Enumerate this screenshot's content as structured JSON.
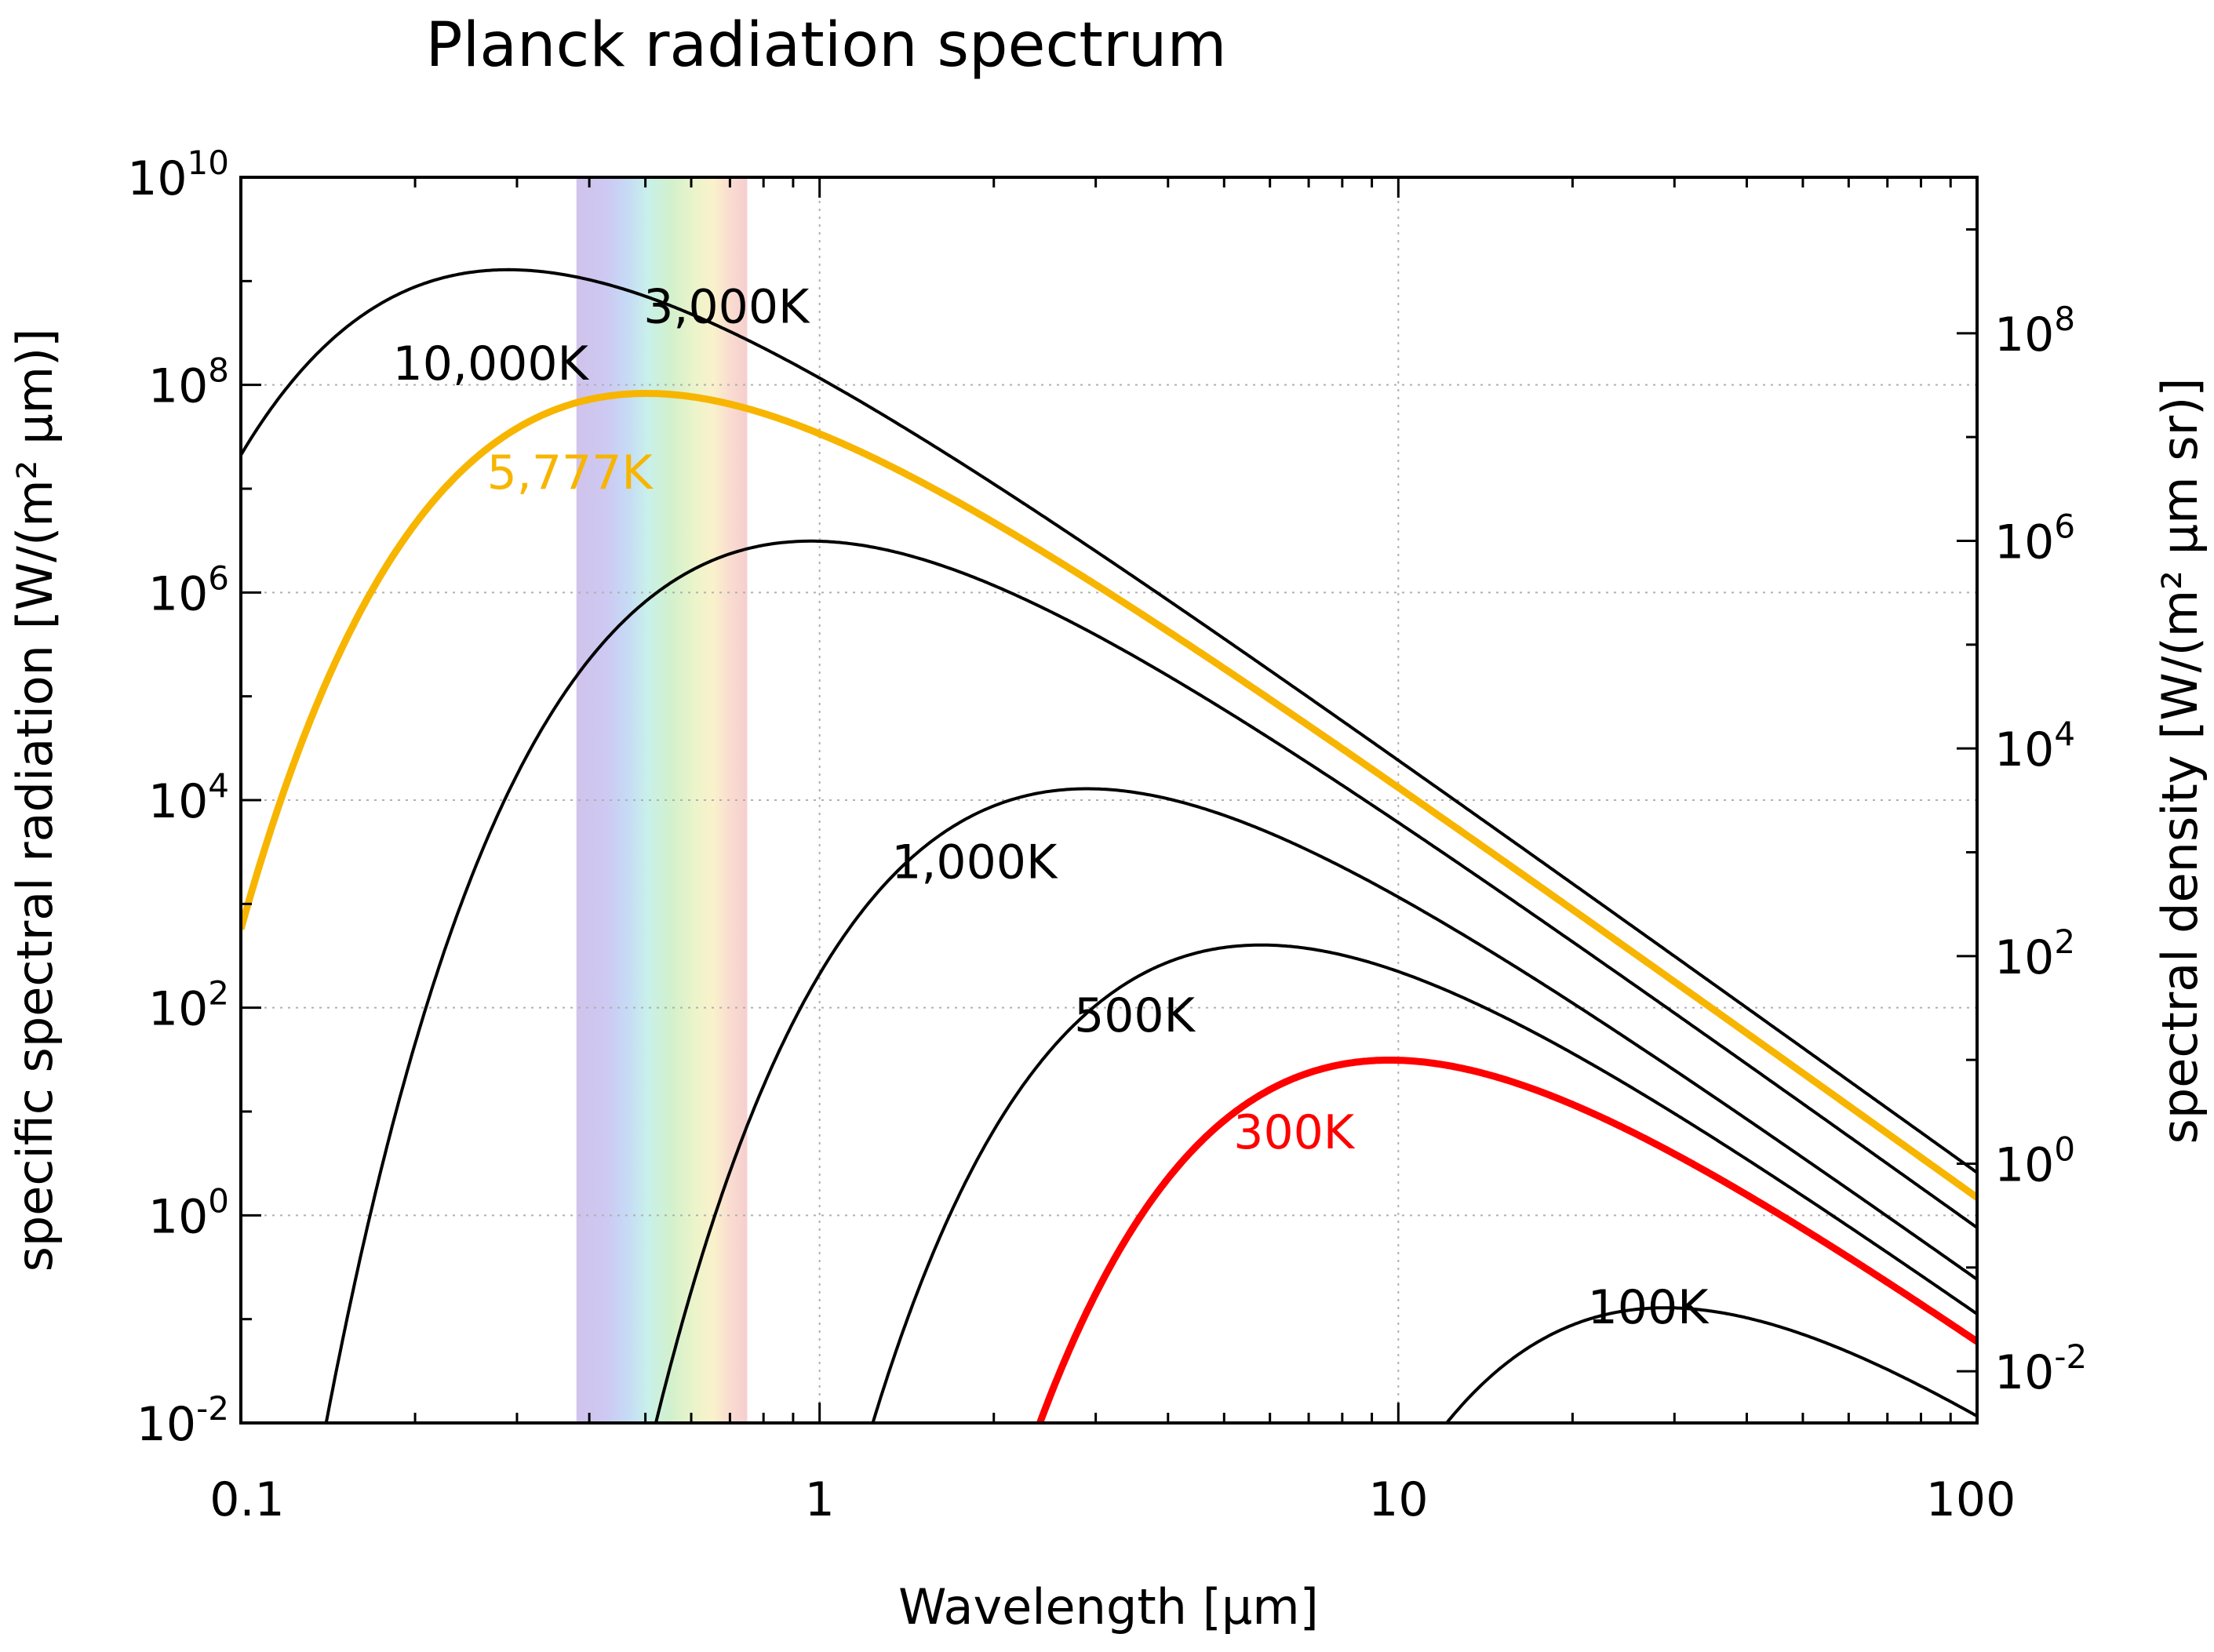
{
  "chart_data": {
    "type": "line",
    "title": "Planck radiation spectrum",
    "xlabel": "Wavelength [µm]",
    "ylabel": "specific spectral radiation [W/(m² µm)]",
    "y2label": "spectral density [W/(m² µm sr)]",
    "xscale": "log",
    "yscale": "log",
    "xlim": [
      0.1,
      100
    ],
    "ylim": [
      0.01,
      10000000000
    ],
    "y2lim": [
      0.00318,
      3180000000
    ],
    "grid": true,
    "x_ticks": [
      {
        "value": 0.1,
        "label": "0.1"
      },
      {
        "value": 1,
        "label": "1"
      },
      {
        "value": 10,
        "label": "10"
      },
      {
        "value": 100,
        "label": "100"
      }
    ],
    "y_ticks": [
      {
        "value": 0.01,
        "base": "10",
        "exp": "-2"
      },
      {
        "value": 1,
        "base": "10",
        "exp": "0"
      },
      {
        "value": 100,
        "base": "10",
        "exp": "2"
      },
      {
        "value": 10000,
        "base": "10",
        "exp": "4"
      },
      {
        "value": 1000000,
        "base": "10",
        "exp": "6"
      },
      {
        "value": 100000000,
        "base": "10",
        "exp": "8"
      },
      {
        "value": 10000000000,
        "base": "10",
        "exp": "10"
      }
    ],
    "y2_ticks": [
      {
        "value": 0.01,
        "base": "10",
        "exp": "-2"
      },
      {
        "value": 1,
        "base": "10",
        "exp": "0"
      },
      {
        "value": 100,
        "base": "10",
        "exp": "2"
      },
      {
        "value": 10000,
        "base": "10",
        "exp": "4"
      },
      {
        "value": 1000000,
        "base": "10",
        "exp": "6"
      },
      {
        "value": 100000000,
        "base": "10",
        "exp": "8"
      }
    ],
    "visible_band": {
      "from": 0.38,
      "to": 0.75
    },
    "series": [
      {
        "name": "10,000K",
        "temperature": 10000,
        "color": "#000000",
        "emphasis": false
      },
      {
        "name": "5,777K",
        "temperature": 5777,
        "color": "#f7b500",
        "emphasis": true
      },
      {
        "name": "3,000K",
        "temperature": 3000,
        "color": "#000000",
        "emphasis": false
      },
      {
        "name": "1,000K",
        "temperature": 1000,
        "color": "#000000",
        "emphasis": false
      },
      {
        "name": "500K",
        "temperature": 500,
        "color": "#000000",
        "emphasis": false
      },
      {
        "name": "300K",
        "temperature": 300,
        "color": "#ff0000",
        "emphasis": true
      },
      {
        "name": "100K",
        "temperature": 100,
        "color": "#000000",
        "emphasis": false
      }
    ],
    "annotations": [
      {
        "text": "10,000K",
        "x": 0.27,
        "y": 112000000,
        "color": "#000000"
      },
      {
        "text": "5,777K",
        "x": 0.37,
        "y": 10000000,
        "color": "#f7b500"
      },
      {
        "text": "3,000K",
        "x": 0.69,
        "y": 398000000,
        "color": "#000000"
      },
      {
        "text": "1,000K",
        "x": 1.85,
        "y": 1770,
        "color": "#000000"
      },
      {
        "text": "500K",
        "x": 3.5,
        "y": 59,
        "color": "#000000"
      },
      {
        "text": "300K",
        "x": 6.6,
        "y": 4.4,
        "color": "#ff0000"
      },
      {
        "text": "100K",
        "x": 27,
        "y": 0.091,
        "color": "#000000"
      }
    ]
  }
}
